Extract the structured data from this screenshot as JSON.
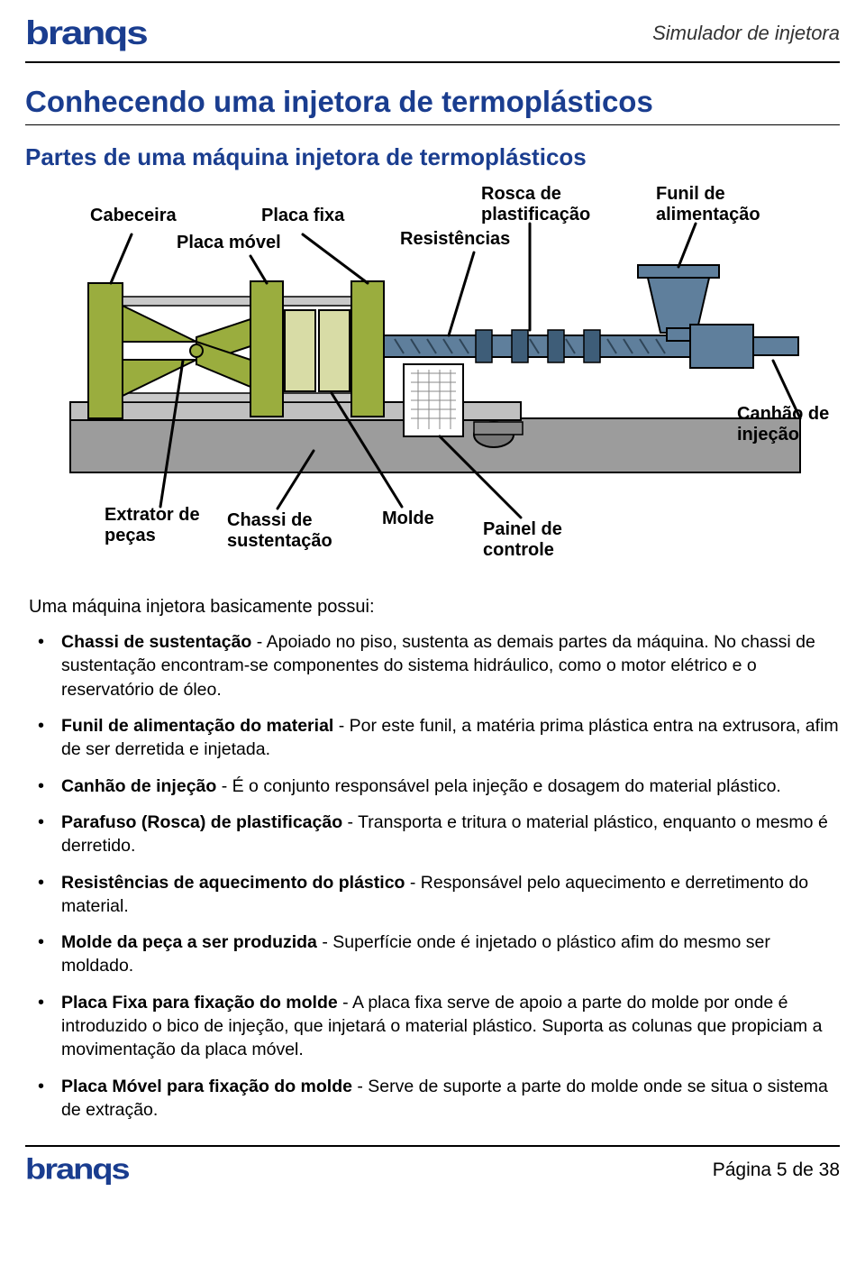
{
  "header": {
    "brand": "branqs",
    "doc_title": "Simulador de injetora"
  },
  "title": "Conhecendo uma injetora de termoplásticos",
  "subtitle": "Partes de uma máquina injetora de termoplásticos",
  "diagram": {
    "labels": {
      "cabeceira": "Cabeceira",
      "placa_fixa": "Placa fixa",
      "placa_movel": "Placa móvel",
      "rosca": "Rosca de\nplastificação",
      "resistencias": "Resistências",
      "funil": "Funil de\nalimentação",
      "canhao": "Canhão de\ninjeção",
      "extrator": "Extrator de\npeças",
      "chassi": "Chassi de\nsustentação",
      "molde": "Molde",
      "painel": "Painel de\ncontrole"
    },
    "colors": {
      "machine_green": "#9aad3e",
      "machine_blue": "#5f7f9c",
      "base_gray": "#9c9c9c",
      "outline": "#000000",
      "hatch": "#707070"
    }
  },
  "intro": "Uma máquina injetora basicamente possui:",
  "bullets": [
    {
      "term": "Chassi de sustentação",
      "text": " - Apoiado no piso, sustenta as demais partes da máquina. No chassi de sustentação encontram-se componentes do sistema hidráulico, como o motor elétrico e o reservatório de óleo."
    },
    {
      "term": "Funil de alimentação do material",
      "text": " - Por este funil, a matéria prima plástica entra na extrusora, afim de ser derretida e injetada."
    },
    {
      "term": "Canhão de injeção",
      "text": " - É o conjunto responsável pela injeção e dosagem do material plástico."
    },
    {
      "term": "Parafuso (Rosca) de plastificação",
      "text": " - Transporta e tritura o material plástico, enquanto o mesmo é derretido."
    },
    {
      "term": "Resistências de aquecimento do plástico",
      "text": " - Responsável pelo aquecimento e derretimento do material."
    },
    {
      "term": "Molde da peça a ser produzida",
      "text": " - Superfície onde é injetado o plástico afim do mesmo ser moldado."
    },
    {
      "term": "Placa Fixa para fixação do molde",
      "text": " - A placa fixa serve de apoio a parte do molde por onde é introduzido o bico de injeção, que injetará o material plástico. Suporta as colunas que propiciam a movimentação da placa móvel."
    },
    {
      "term": "Placa Móvel para fixação do molde",
      "text": " - Serve de suporte a parte do molde onde se situa o sistema de extração."
    }
  ],
  "footer": {
    "brand": "branqs",
    "page": "Página 5 de 38"
  }
}
